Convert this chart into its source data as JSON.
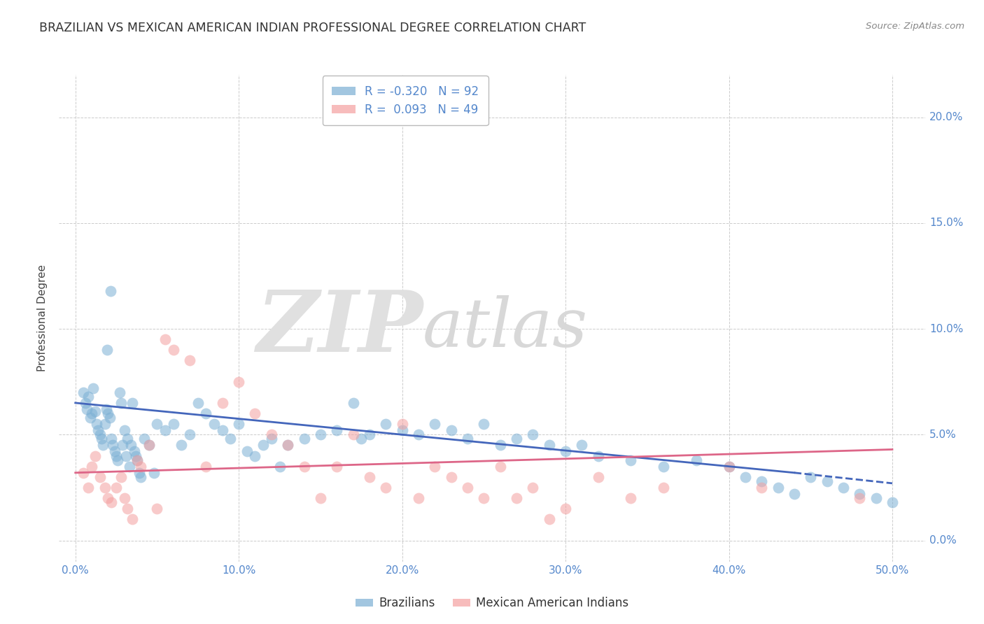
{
  "title": "BRAZILIAN VS MEXICAN AMERICAN INDIAN PROFESSIONAL DEGREE CORRELATION CHART",
  "source": "Source: ZipAtlas.com",
  "ylabel": "Professional Degree",
  "xlabel_vals": [
    0,
    10,
    20,
    30,
    40,
    50
  ],
  "ylabel_vals": [
    0,
    5,
    10,
    15,
    20
  ],
  "xlim": [
    -1,
    52
  ],
  "ylim": [
    -1.0,
    22
  ],
  "brazilian_color": "#7BAFD4",
  "mexican_color": "#F4A0A0",
  "brazilian_R": -0.32,
  "brazilian_N": 92,
  "mexican_R": 0.093,
  "mexican_N": 49,
  "watermark_zip": "ZIP",
  "watermark_atlas": "atlas",
  "trendline_blue_x0": 0,
  "trendline_blue_x1": 44,
  "trendline_blue_x2": 50,
  "trendline_blue_y0": 6.5,
  "trendline_blue_y1": 3.2,
  "trendline_blue_y2": 2.7,
  "trendline_pink_x0": 0,
  "trendline_pink_x1": 50,
  "trendline_pink_y0": 3.2,
  "trendline_pink_y1": 4.3,
  "grid_color": "#cccccc",
  "background_color": "#ffffff",
  "title_fontsize": 12.5,
  "axis_label_fontsize": 11,
  "tick_fontsize": 11,
  "legend_fontsize": 12,
  "blue_scatter_x": [
    0.5,
    0.6,
    0.7,
    0.8,
    0.9,
    1.0,
    1.1,
    1.2,
    1.3,
    1.4,
    1.5,
    1.6,
    1.7,
    1.8,
    1.9,
    2.0,
    2.1,
    2.2,
    2.3,
    2.4,
    2.5,
    2.6,
    2.7,
    2.8,
    2.9,
    3.0,
    3.1,
    3.2,
    3.3,
    3.4,
    3.5,
    3.6,
    3.7,
    3.8,
    3.9,
    4.0,
    4.2,
    4.5,
    4.8,
    5.0,
    5.5,
    6.0,
    6.5,
    7.0,
    7.5,
    8.0,
    8.5,
    9.0,
    9.5,
    10.0,
    10.5,
    11.0,
    11.5,
    12.0,
    12.5,
    13.0,
    14.0,
    15.0,
    16.0,
    17.0,
    17.5,
    18.0,
    19.0,
    20.0,
    21.0,
    22.0,
    23.0,
    24.0,
    25.0,
    26.0,
    27.0,
    28.0,
    29.0,
    30.0,
    31.0,
    32.0,
    34.0,
    36.0,
    38.0,
    40.0,
    41.0,
    42.0,
    43.0,
    44.0,
    45.0,
    46.0,
    47.0,
    48.0,
    49.0,
    50.0,
    2.15,
    1.95
  ],
  "blue_scatter_y": [
    7.0,
    6.5,
    6.2,
    6.8,
    5.8,
    6.0,
    7.2,
    6.1,
    5.5,
    5.2,
    5.0,
    4.8,
    4.5,
    5.5,
    6.2,
    6.0,
    5.8,
    4.8,
    4.5,
    4.2,
    4.0,
    3.8,
    7.0,
    6.5,
    4.5,
    5.2,
    4.0,
    4.8,
    3.5,
    4.5,
    6.5,
    4.2,
    4.0,
    3.8,
    3.2,
    3.0,
    4.8,
    4.5,
    3.2,
    5.5,
    5.2,
    5.5,
    4.5,
    5.0,
    6.5,
    6.0,
    5.5,
    5.2,
    4.8,
    5.5,
    4.2,
    4.0,
    4.5,
    4.8,
    3.5,
    4.5,
    4.8,
    5.0,
    5.2,
    6.5,
    4.8,
    5.0,
    5.5,
    5.2,
    5.0,
    5.5,
    5.2,
    4.8,
    5.5,
    4.5,
    4.8,
    5.0,
    4.5,
    4.2,
    4.5,
    4.0,
    3.8,
    3.5,
    3.8,
    3.5,
    3.0,
    2.8,
    2.5,
    2.2,
    3.0,
    2.8,
    2.5,
    2.2,
    2.0,
    1.8,
    11.8,
    9.0
  ],
  "pink_scatter_x": [
    0.5,
    0.8,
    1.0,
    1.2,
    1.5,
    1.8,
    2.0,
    2.2,
    2.5,
    2.8,
    3.0,
    3.2,
    3.5,
    4.0,
    4.5,
    5.0,
    6.0,
    7.0,
    8.0,
    9.0,
    10.0,
    11.0,
    12.0,
    13.0,
    14.0,
    15.0,
    16.0,
    17.0,
    18.0,
    19.0,
    20.0,
    21.0,
    22.0,
    23.0,
    24.0,
    25.0,
    26.0,
    27.0,
    28.0,
    29.0,
    30.0,
    32.0,
    34.0,
    36.0,
    40.0,
    42.0,
    48.0,
    5.5,
    3.8
  ],
  "pink_scatter_y": [
    3.2,
    2.5,
    3.5,
    4.0,
    3.0,
    2.5,
    2.0,
    1.8,
    2.5,
    3.0,
    2.0,
    1.5,
    1.0,
    3.5,
    4.5,
    1.5,
    9.0,
    8.5,
    3.5,
    6.5,
    7.5,
    6.0,
    5.0,
    4.5,
    3.5,
    2.0,
    3.5,
    5.0,
    3.0,
    2.5,
    5.5,
    2.0,
    3.5,
    3.0,
    2.5,
    2.0,
    3.5,
    2.0,
    2.5,
    1.0,
    1.5,
    3.0,
    2.0,
    2.5,
    3.5,
    2.5,
    2.0,
    9.5,
    3.8
  ]
}
